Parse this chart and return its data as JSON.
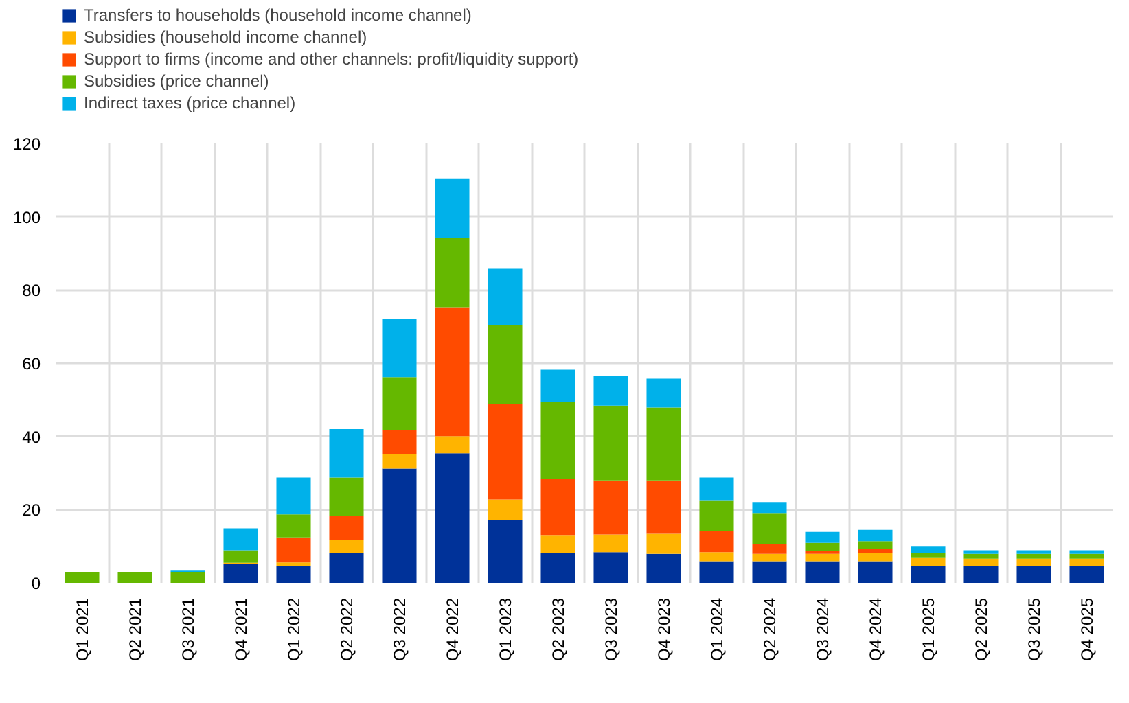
{
  "chart_data": {
    "type": "bar",
    "stacked": true,
    "categories": [
      "Q1 2021",
      "Q2 2021",
      "Q3 2021",
      "Q4 2021",
      "Q1 2022",
      "Q2 2022",
      "Q3 2022",
      "Q4 2022",
      "Q1 2023",
      "Q2 2023",
      "Q3 2023",
      "Q4 2023",
      "Q1 2024",
      "Q2 2024",
      "Q3 2024",
      "Q4 2024",
      "Q1 2025",
      "Q2 2025",
      "Q3 2025",
      "Q4 2025"
    ],
    "series": [
      {
        "name": "Transfers to households (household income channel)",
        "color": "#003299",
        "values": [
          0,
          0,
          0,
          5.2,
          4.6,
          8.2,
          31.2,
          35.4,
          17.2,
          8.2,
          8.4,
          7.9,
          5.9,
          5.9,
          5.9,
          5.9,
          4.5,
          4.5,
          4.5,
          4.5
        ]
      },
      {
        "name": "Subsidies (household income channel)",
        "color": "#ffb400",
        "values": [
          0,
          0,
          0,
          0.3,
          1,
          3.6,
          3.9,
          4.7,
          5.6,
          4.7,
          4.8,
          5.5,
          2.5,
          2,
          2,
          2.3,
          2.3,
          2.1,
          2.1,
          2.1
        ]
      },
      {
        "name": "Support to firms (income and other channels: profit/liquidity support)",
        "color": "#ff4b00",
        "values": [
          0,
          0,
          0,
          0,
          6.8,
          6.5,
          6.6,
          35.2,
          26,
          15.4,
          14.8,
          14.6,
          5.7,
          2.6,
          0.8,
          1,
          0,
          0,
          0,
          0
        ]
      },
      {
        "name": "Subsidies (price channel)",
        "color": "#65b800",
        "values": [
          3,
          3,
          3,
          3.4,
          6.3,
          10.5,
          14.5,
          19,
          21.6,
          21,
          20.4,
          19.9,
          8.3,
          8.6,
          2.2,
          2.2,
          1.4,
          1.3,
          1.3,
          1.3
        ]
      },
      {
        "name": "Indirect taxes (price channel)",
        "color": "#00b1ea",
        "values": [
          0,
          0,
          0.5,
          6,
          10.1,
          13.2,
          15.8,
          16,
          15.4,
          8.9,
          8.2,
          7.9,
          6.4,
          3,
          3,
          3.1,
          1.7,
          1,
          1,
          1
        ]
      }
    ],
    "ylim": [
      0,
      120
    ],
    "yticks": [
      0,
      20,
      40,
      60,
      80,
      100,
      120
    ],
    "grid": true,
    "legend": "top left"
  }
}
